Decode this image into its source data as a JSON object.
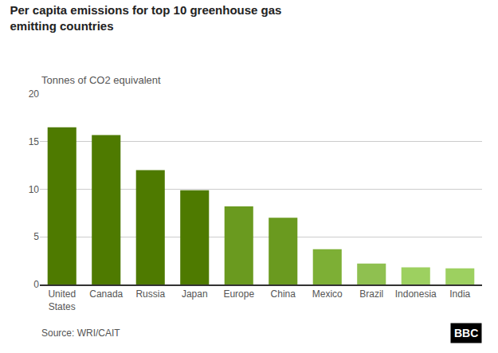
{
  "chart_data": {
    "type": "bar",
    "title": "Per capita emissions for top 10 greenhouse gas\nemitting countries",
    "ylabel": "Tonnes of CO2 equivalent",
    "categories": [
      "United\nStates",
      "Canada",
      "Russia",
      "Japan",
      "Europe",
      "China",
      "Mexico",
      "Brazil",
      "Indonesia",
      "India"
    ],
    "values": [
      16.5,
      15.7,
      12.0,
      9.9,
      8.2,
      7.0,
      3.7,
      2.2,
      1.8,
      1.7
    ],
    "colors": [
      "#4e7a00",
      "#4e7a00",
      "#4e7a00",
      "#4e7a00",
      "#6a9a1f",
      "#6a9a1f",
      "#7daf35",
      "#8fc050",
      "#9dd060",
      "#9dd060"
    ],
    "ylim": [
      0,
      20
    ],
    "yticks": [
      0,
      5,
      10,
      15,
      20
    ],
    "grid": true,
    "annotations": [
      {
        "text": "Source: WRI/CAIT"
      },
      {
        "text": "BBC"
      }
    ]
  }
}
